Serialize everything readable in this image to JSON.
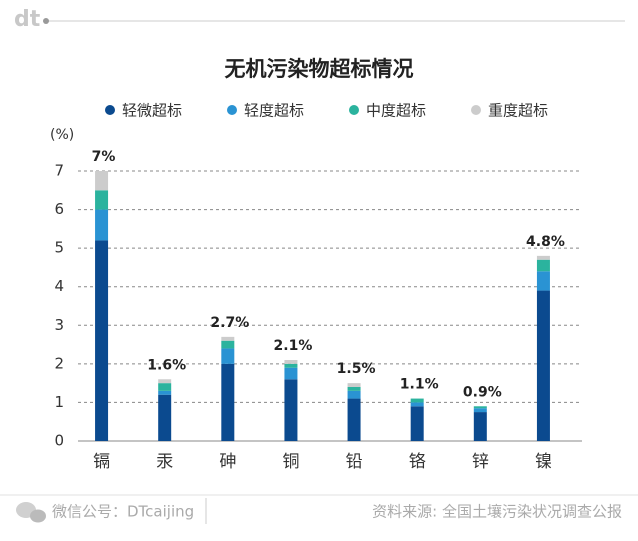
{
  "chart_data": {
    "type": "stacked_bar",
    "title": "无机污染物超标情况",
    "y_label": "(%)",
    "categories": [
      "镉",
      "汞",
      "砷",
      "铜",
      "铅",
      "铬",
      "锌",
      "镍"
    ],
    "series": [
      {
        "name": "轻微超标",
        "color": "#0b4a8f",
        "values": [
          5.2,
          1.2,
          2.0,
          1.6,
          1.1,
          0.9,
          0.75,
          3.9
        ]
      },
      {
        "name": "轻度超标",
        "color": "#2a93d3",
        "values": [
          0.8,
          0.1,
          0.4,
          0.3,
          0.2,
          0.1,
          0.1,
          0.5
        ]
      },
      {
        "name": "中度超标",
        "color": "#2bb39e",
        "values": [
          0.5,
          0.2,
          0.2,
          0.1,
          0.1,
          0.1,
          0.05,
          0.3
        ]
      },
      {
        "name": "重度超标",
        "color": "#cccccc",
        "values": [
          0.5,
          0.1,
          0.1,
          0.1,
          0.1,
          0,
          0,
          0.1
        ]
      }
    ],
    "totals": [
      7,
      1.6,
      2.7,
      2.1,
      1.5,
      1.1,
      0.9,
      4.8
    ],
    "total_labels": [
      "7%",
      "1.6%",
      "2.7%",
      "2.1%",
      "1.5%",
      "1.1%",
      "0.9%",
      "4.8%"
    ],
    "ylim": [
      0,
      7
    ],
    "yticks": [
      0,
      1,
      2,
      3,
      4,
      5,
      6,
      7
    ],
    "grid": true,
    "legend": "top"
  },
  "logo": "dt",
  "credit": "微信公号：DTcaijing",
  "source": "资料来源: 全国土壤污染状况调查公报"
}
